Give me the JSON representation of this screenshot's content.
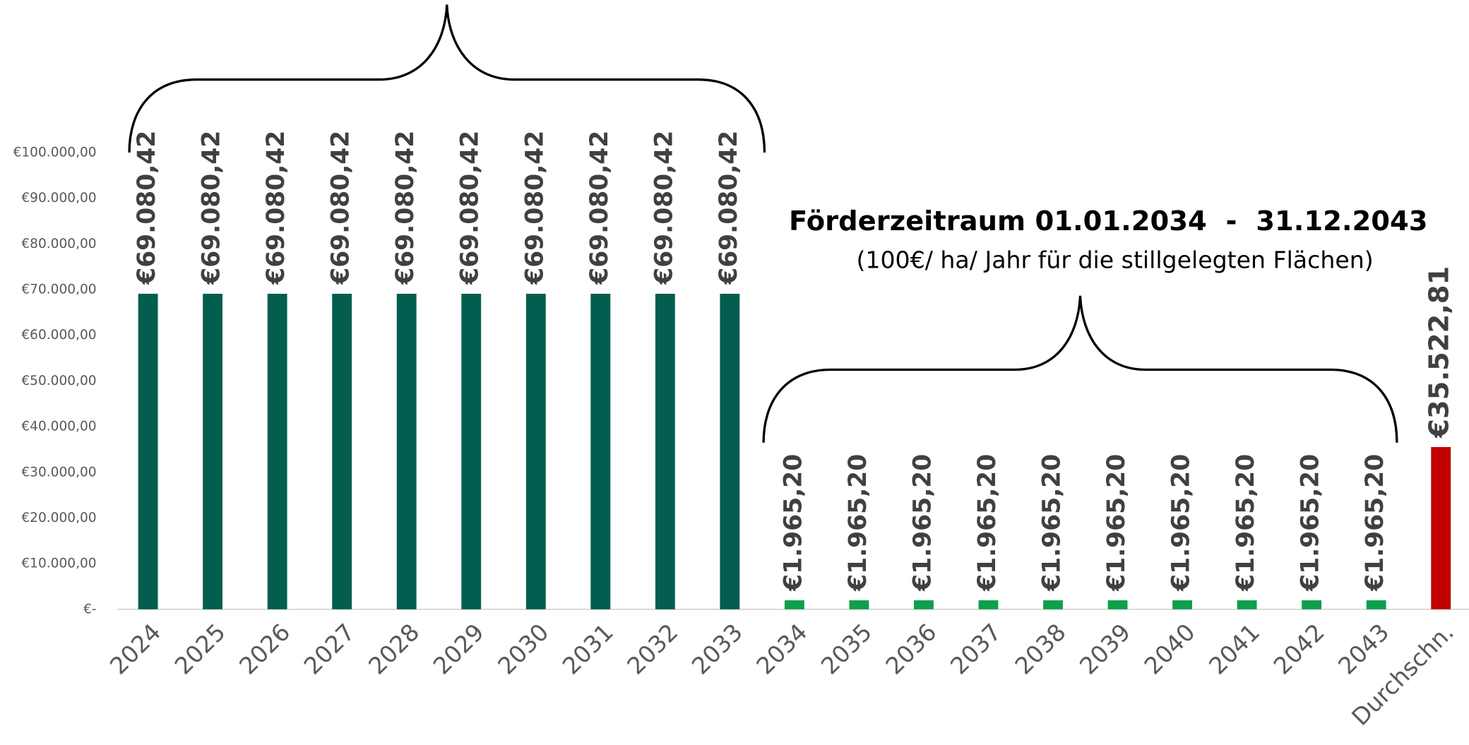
{
  "chart_data": {
    "type": "bar",
    "categories": [
      "2024",
      "2025",
      "2026",
      "2027",
      "2028",
      "2029",
      "2030",
      "2031",
      "2032",
      "2033",
      "2034",
      "2035",
      "2036",
      "2037",
      "2038",
      "2039",
      "2040",
      "2041",
      "2042",
      "2043",
      "Durchschn."
    ],
    "values": [
      69080.42,
      69080.42,
      69080.42,
      69080.42,
      69080.42,
      69080.42,
      69080.42,
      69080.42,
      69080.42,
      69080.42,
      1965.2,
      1965.2,
      1965.2,
      1965.2,
      1965.2,
      1965.2,
      1965.2,
      1965.2,
      1965.2,
      1965.2,
      35522.81
    ],
    "value_labels": [
      "€69.080,42",
      "€69.080,42",
      "€69.080,42",
      "€69.080,42",
      "€69.080,42",
      "€69.080,42",
      "€69.080,42",
      "€69.080,42",
      "€69.080,42",
      "€69.080,42",
      "€1.965,20",
      "€1.965,20",
      "€1.965,20",
      "€1.965,20",
      "€1.965,20",
      "€1.965,20",
      "€1.965,20",
      "€1.965,20",
      "€1.965,20",
      "€1.965,20",
      "€35.522,81"
    ],
    "colors": [
      "#035e4f",
      "#035e4f",
      "#035e4f",
      "#035e4f",
      "#035e4f",
      "#035e4f",
      "#035e4f",
      "#035e4f",
      "#035e4f",
      "#035e4f",
      "#0ea04a",
      "#0ea04a",
      "#0ea04a",
      "#0ea04a",
      "#0ea04a",
      "#0ea04a",
      "#0ea04a",
      "#0ea04a",
      "#0ea04a",
      "#0ea04a",
      "#c00000"
    ],
    "ylim": [
      0,
      100000
    ],
    "yticks": [
      {
        "value": 0,
        "label": "€-"
      },
      {
        "value": 10000,
        "label": "€10.000,00"
      },
      {
        "value": 20000,
        "label": "€20.000,00"
      },
      {
        "value": 30000,
        "label": "€30.000,00"
      },
      {
        "value": 40000,
        "label": "€40.000,00"
      },
      {
        "value": 50000,
        "label": "€50.000,00"
      },
      {
        "value": 60000,
        "label": "€60.000,00"
      },
      {
        "value": 70000,
        "label": "€70.000,00"
      },
      {
        "value": 80000,
        "label": "€80.000,00"
      },
      {
        "value": 90000,
        "label": "€90.000,00"
      },
      {
        "value": 100000,
        "label": "€100.000,00"
      }
    ],
    "grid": false,
    "annotations": [
      "Förderzeitraum 01.01.2034  -  31.12.2043",
      "(100€/ ha/ Jahr für die stillgelegten Flächen)"
    ]
  }
}
